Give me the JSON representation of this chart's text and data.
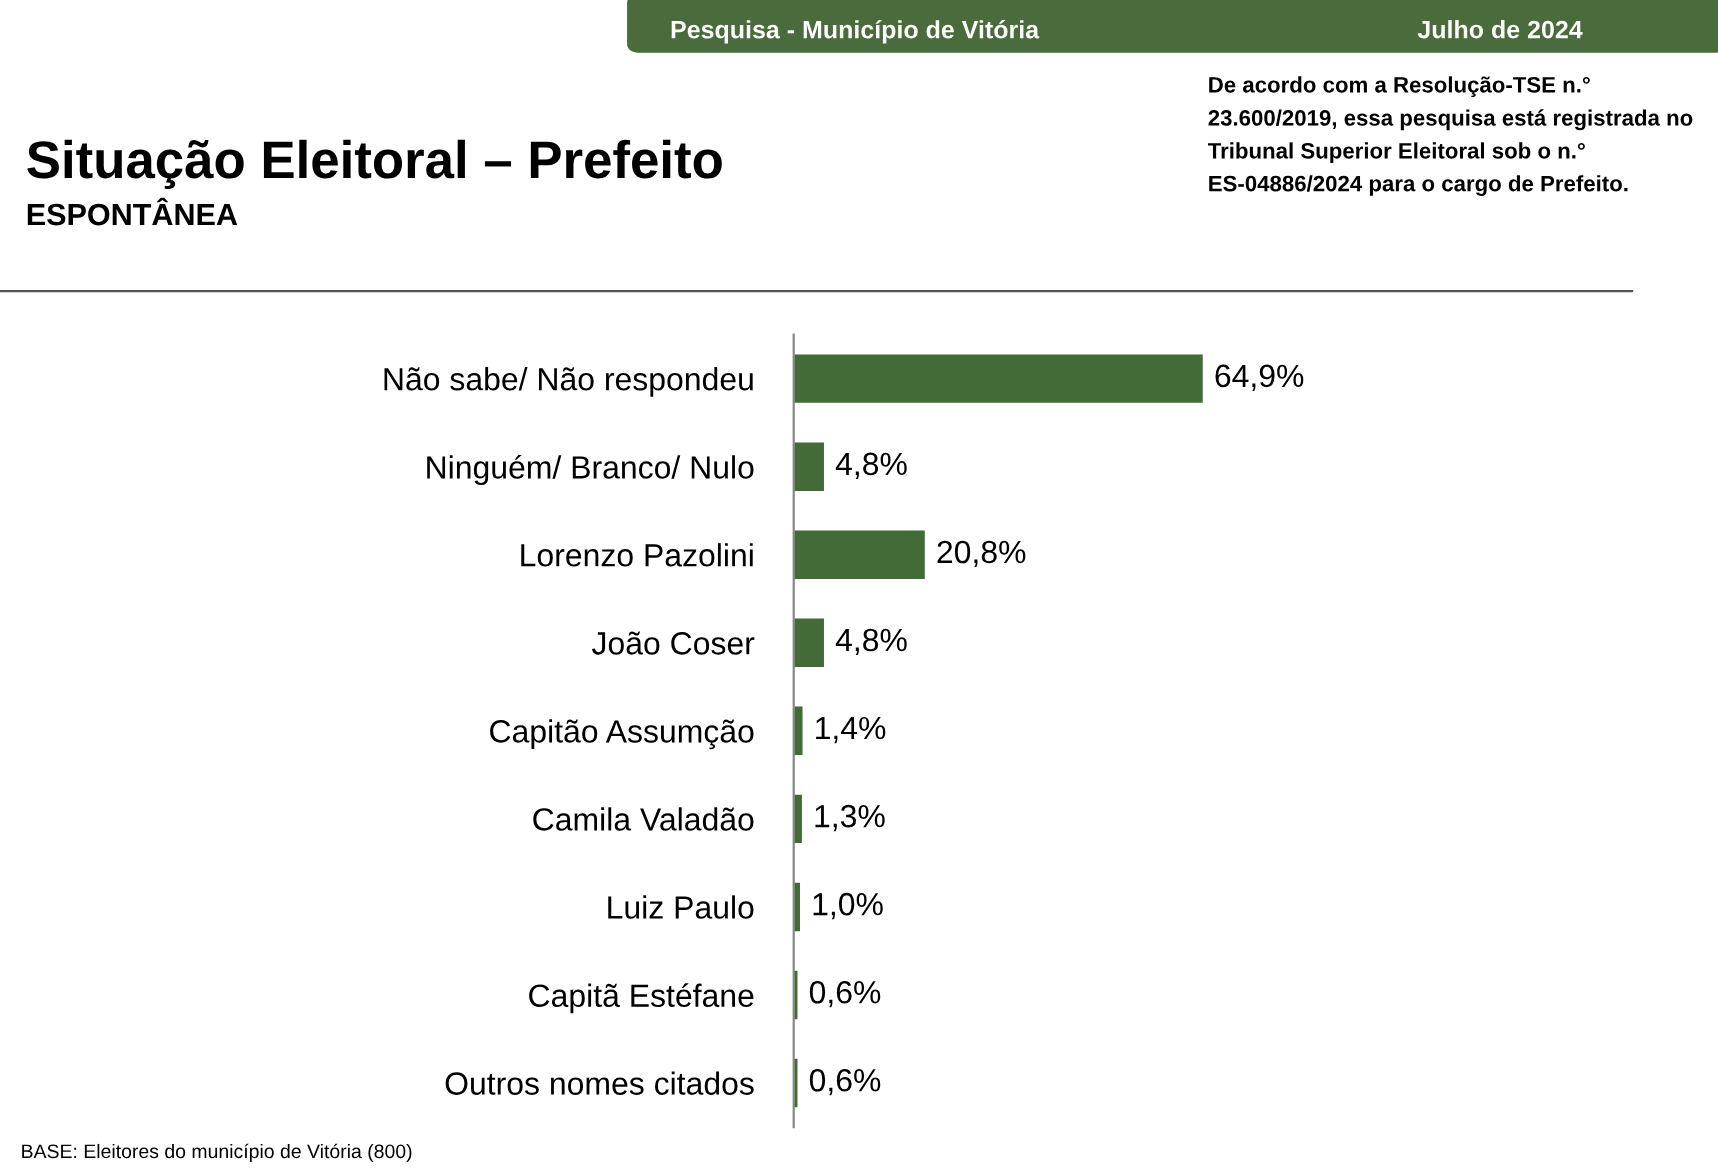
{
  "chart_data": {
    "type": "bar",
    "orientation": "horizontal",
    "title": "Situação Eleitoral – Prefeito",
    "subtitle": "ESPONTÂNEA",
    "categories": [
      "Não sabe/ Não respondeu",
      "Ninguém/ Branco/ Nulo",
      "Lorenzo Pazolini",
      "João Coser",
      "Capitão Assumção",
      "Camila Valadão",
      "Luiz Paulo",
      "Capitã Estéfane",
      "Outros nomes citados"
    ],
    "values": [
      64.9,
      4.8,
      20.8,
      4.8,
      1.4,
      1.3,
      1.0,
      0.6,
      0.6
    ],
    "value_labels": [
      "64,9%",
      "4,8%",
      "20,8%",
      "4,8%",
      "1,4%",
      "1,3%",
      "1,0%",
      "0,6%",
      "0,6%"
    ],
    "color": "#436b38",
    "annotations": [
      "Pesquisa - Município de Vitória",
      "Julho de 2024",
      "De acordo com a Resolução-TSE n.° 23.600/2019, essa pesquisa está registrada no Tribunal Superior Eleitoral sob o n.° ES-04886/2024 para o cargo de Prefeito.",
      "BASE: Eleitores do município de Vitória (800)"
    ],
    "grid": false,
    "legend": false
  }
}
